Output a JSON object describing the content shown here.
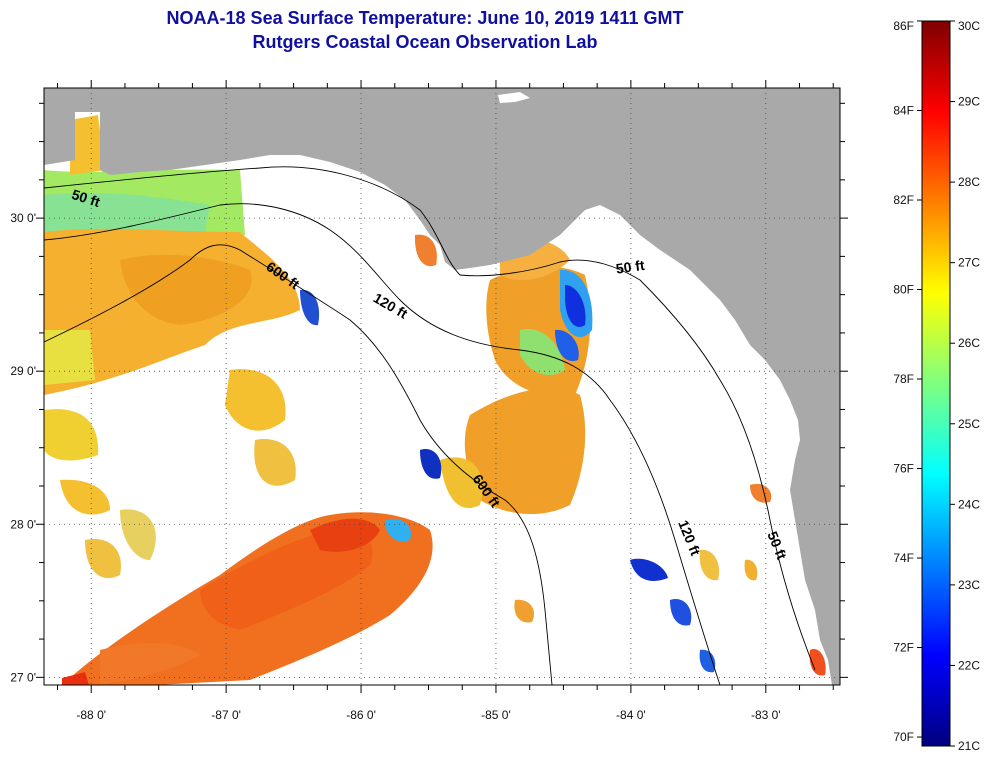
{
  "title": {
    "line1": "NOAA-18 Sea Surface Temperature:  June 10, 2019 1411 GMT",
    "line2": "Rutgers Coastal Ocean Observation Lab"
  },
  "axes": {
    "lon_ticks": [
      {
        "value": -88,
        "label": "-88 0'"
      },
      {
        "value": -87,
        "label": "-87 0'"
      },
      {
        "value": -86,
        "label": "-86 0'"
      },
      {
        "value": -85,
        "label": "-85 0'"
      },
      {
        "value": -84,
        "label": "-84 0'"
      },
      {
        "value": -83,
        "label": "-83 0'"
      }
    ],
    "lat_ticks": [
      {
        "value": 30,
        "label": "30 0'"
      },
      {
        "value": 29,
        "label": "29 0'"
      },
      {
        "value": 28,
        "label": "28 0'"
      },
      {
        "value": 27,
        "label": "27 0'"
      }
    ],
    "lon_range": [
      -88.35,
      -82.45
    ],
    "lat_range": [
      26.95,
      30.85
    ]
  },
  "isobath_labels": [
    {
      "text": "50 ft",
      "lon": -88.05,
      "lat": 30.1,
      "rotate": 18
    },
    {
      "text": "600 ft",
      "lon": -86.6,
      "lat": 29.6,
      "rotate": 35
    },
    {
      "text": "120 ft",
      "lon": -85.8,
      "lat": 29.4,
      "rotate": 30
    },
    {
      "text": "50 ft",
      "lon": -84.0,
      "lat": 29.65,
      "rotate": -8
    },
    {
      "text": "600 ft",
      "lon": -85.1,
      "lat": 28.2,
      "rotate": 55
    },
    {
      "text": "120 ft",
      "lon": -83.6,
      "lat": 27.9,
      "rotate": 68
    },
    {
      "text": "50 ft",
      "lon": -82.95,
      "lat": 27.85,
      "rotate": 68
    }
  ],
  "colorbar": {
    "f_labels": [
      {
        "value": 86,
        "label": "86F"
      },
      {
        "value": 84,
        "label": "84F"
      },
      {
        "value": 82,
        "label": "82F"
      },
      {
        "value": 80,
        "label": "80F"
      },
      {
        "value": 78,
        "label": "78F"
      },
      {
        "value": 76,
        "label": "76F"
      },
      {
        "value": 74,
        "label": "74F"
      },
      {
        "value": 72,
        "label": "72F"
      },
      {
        "value": 70,
        "label": "70F"
      }
    ],
    "c_labels": [
      {
        "value": 30,
        "label": "30C"
      },
      {
        "value": 29,
        "label": "29C"
      },
      {
        "value": 28,
        "label": "28C"
      },
      {
        "value": 27,
        "label": "27C"
      },
      {
        "value": 26,
        "label": "26C"
      },
      {
        "value": 25,
        "label": "25C"
      },
      {
        "value": 24,
        "label": "24C"
      },
      {
        "value": 23,
        "label": "23C"
      },
      {
        "value": 22,
        "label": "22C"
      },
      {
        "value": 21,
        "label": "21C"
      }
    ],
    "range_c": [
      21,
      30
    ],
    "stops": [
      "#00007f",
      "#0000ff",
      "#007fff",
      "#00ffff",
      "#7fff7f",
      "#ffff00",
      "#ff7f00",
      "#ff0000",
      "#7f0000"
    ]
  },
  "colors": {
    "land": "#a9a9a9",
    "ocean_nodata": "#ffffff",
    "title": "#1010a0"
  }
}
